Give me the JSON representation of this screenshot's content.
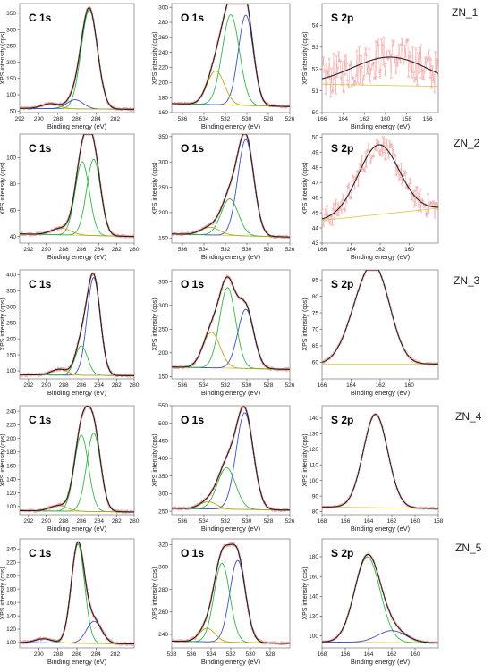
{
  "axis_label_x": "Binding energy (eV)",
  "axis_label_y": "XPS intensity (cps)",
  "colors": {
    "data": "#f2a0a0",
    "envelope": "#222222",
    "component_green": "#36b34a",
    "component_blue": "#3a4fc6",
    "component_olive": "#b5a523",
    "baseline": "#d9c84a"
  },
  "chart_data": [
    {
      "type": "line",
      "sample": "ZN_1",
      "title": "C 1s",
      "xlim": [
        292,
        280
      ],
      "xticks": [
        292,
        290,
        288,
        286,
        284,
        282
      ],
      "ylim": [
        45,
        380
      ],
      "yticks": [
        50,
        100,
        150,
        200,
        250,
        300,
        350
      ],
      "base_start": 58,
      "base_end": 55,
      "peaks": [
        {
          "c": 284.7,
          "w": 0.85,
          "h": 305,
          "color": "green"
        },
        {
          "c": 286.2,
          "w": 0.85,
          "h": 28,
          "color": "blue"
        },
        {
          "c": 288.8,
          "w": 0.9,
          "h": 15,
          "color": "olive"
        }
      ],
      "noise": 0
    },
    {
      "type": "line",
      "sample": "ZN_1",
      "title": "O 1s",
      "xlim": [
        537,
        526
      ],
      "xticks": [
        536,
        534,
        532,
        530,
        528,
        526
      ],
      "ylim": [
        160,
        305
      ],
      "yticks": [
        160,
        180,
        200,
        220,
        240,
        260,
        280,
        300
      ],
      "base_start": 172,
      "base_end": 168,
      "peaks": [
        {
          "c": 530.1,
          "w": 0.7,
          "h": 120,
          "color": "blue"
        },
        {
          "c": 531.5,
          "w": 0.8,
          "h": 120,
          "color": "green"
        },
        {
          "c": 532.9,
          "w": 0.8,
          "h": 45,
          "color": "olive"
        }
      ],
      "noise": 0
    },
    {
      "type": "line",
      "sample": "ZN_1",
      "title": "S 2p",
      "xlim": [
        166,
        155
      ],
      "xticks": [
        166,
        164,
        162,
        160,
        158,
        156
      ],
      "ylim": [
        50,
        55
      ],
      "yticks": [
        50,
        51,
        52,
        53,
        54
      ],
      "base_start": 51.3,
      "base_end": 51.2,
      "peaks": [
        {
          "c": 159.5,
          "w": 3.6,
          "h": 1.3,
          "color": "none"
        }
      ],
      "noise": 1.0
    },
    {
      "type": "line",
      "sample": "ZN_2",
      "title": "C 1s",
      "xlim": [
        293,
        280
      ],
      "xticks": [
        292,
        290,
        288,
        286,
        284,
        282,
        280
      ],
      "ylim": [
        35,
        118
      ],
      "yticks": [
        40,
        60,
        80,
        100
      ],
      "base_start": 42,
      "base_end": 40,
      "peaks": [
        {
          "c": 284.6,
          "w": 0.8,
          "h": 58,
          "color": "green"
        },
        {
          "c": 285.9,
          "w": 0.8,
          "h": 56,
          "color": "green"
        },
        {
          "c": 288.3,
          "w": 1.1,
          "h": 5,
          "color": "olive"
        }
      ],
      "noise": 0
    },
    {
      "type": "line",
      "sample": "ZN_2",
      "title": "O 1s",
      "xlim": [
        537,
        526
      ],
      "xticks": [
        536,
        534,
        532,
        530,
        528,
        526
      ],
      "ylim": [
        140,
        355
      ],
      "yticks": [
        150,
        200,
        250,
        300,
        350
      ],
      "base_start": 158,
      "base_end": 152,
      "peaks": [
        {
          "c": 530.1,
          "w": 0.75,
          "h": 190,
          "color": "blue"
        },
        {
          "c": 531.6,
          "w": 0.8,
          "h": 72,
          "color": "green"
        },
        {
          "c": 533.4,
          "w": 0.9,
          "h": 15,
          "color": "olive"
        }
      ],
      "noise": 0
    },
    {
      "type": "line",
      "sample": "ZN_2",
      "title": "S 2p",
      "xlim": [
        166,
        158
      ],
      "xticks": [
        166,
        164,
        162,
        160
      ],
      "ylim": [
        43,
        50.2
      ],
      "yticks": [
        43,
        44,
        45,
        46,
        47,
        48,
        49,
        50
      ],
      "base_start": 44.5,
      "base_end": 45.3,
      "peaks": [
        {
          "c": 162.1,
          "w": 1.4,
          "h": 4.6,
          "color": "none"
        }
      ],
      "noise": 0.8
    },
    {
      "type": "line",
      "sample": "ZN_3",
      "title": "C 1s",
      "xlim": [
        293,
        280
      ],
      "xticks": [
        292,
        290,
        288,
        286,
        284,
        282,
        280
      ],
      "ylim": [
        75,
        415
      ],
      "yticks": [
        100,
        150,
        200,
        250,
        300,
        350,
        400
      ],
      "base_start": 88,
      "base_end": 85,
      "peaks": [
        {
          "c": 284.6,
          "w": 0.75,
          "h": 305,
          "color": "blue"
        },
        {
          "c": 286.0,
          "w": 0.7,
          "h": 92,
          "color": "green"
        },
        {
          "c": 288.5,
          "w": 0.9,
          "h": 18,
          "color": "olive"
        }
      ],
      "noise": 0
    },
    {
      "type": "line",
      "sample": "ZN_3",
      "title": "O 1s",
      "xlim": [
        537,
        526
      ],
      "xticks": [
        536,
        534,
        532,
        530,
        528,
        526
      ],
      "ylim": [
        145,
        375
      ],
      "yticks": [
        150,
        200,
        250,
        300,
        350
      ],
      "base_start": 170,
      "base_end": 165,
      "peaks": [
        {
          "c": 530.1,
          "w": 0.75,
          "h": 125,
          "color": "blue"
        },
        {
          "c": 531.8,
          "w": 0.75,
          "h": 170,
          "color": "green"
        },
        {
          "c": 533.3,
          "w": 0.8,
          "h": 75,
          "color": "olive"
        }
      ],
      "noise": 0
    },
    {
      "type": "line",
      "sample": "ZN_3",
      "title": "S 2p",
      "xlim": [
        166,
        158
      ],
      "xticks": [
        166,
        164,
        162,
        160
      ],
      "ylim": [
        55,
        88
      ],
      "yticks": [
        60,
        65,
        70,
        75,
        80,
        85
      ],
      "base_start": 59.5,
      "base_end": 59.5,
      "peaks": [
        {
          "c": 162.2,
          "w": 1.0,
          "h": 24,
          "color": "none"
        },
        {
          "c": 163.5,
          "w": 1.0,
          "h": 12,
          "color": "none"
        }
      ],
      "noise": 0.35
    },
    {
      "type": "line",
      "sample": "ZN_4",
      "title": "C 1s",
      "xlim": [
        293,
        280
      ],
      "xticks": [
        292,
        290,
        288,
        286,
        284,
        282,
        280
      ],
      "ylim": [
        88,
        248
      ],
      "yticks": [
        100,
        120,
        140,
        160,
        180,
        200,
        220,
        240
      ],
      "base_start": 94,
      "base_end": 92,
      "peaks": [
        {
          "c": 284.6,
          "w": 0.8,
          "h": 115,
          "color": "green"
        },
        {
          "c": 286.0,
          "w": 0.8,
          "h": 112,
          "color": "green"
        },
        {
          "c": 288.6,
          "w": 1.0,
          "h": 8,
          "color": "olive"
        }
      ],
      "noise": 0
    },
    {
      "type": "line",
      "sample": "ZN_4",
      "title": "O 1s",
      "xlim": [
        537,
        526
      ],
      "xticks": [
        536,
        534,
        532,
        530,
        528,
        526
      ],
      "ylim": [
        240,
        550
      ],
      "yticks": [
        250,
        300,
        350,
        400,
        450,
        500,
        550
      ],
      "base_start": 258,
      "base_end": 253,
      "peaks": [
        {
          "c": 530.2,
          "w": 0.8,
          "h": 275,
          "color": "blue"
        },
        {
          "c": 531.9,
          "w": 0.85,
          "h": 118,
          "color": "green"
        },
        {
          "c": 533.6,
          "w": 0.8,
          "h": 20,
          "color": "olive"
        }
      ],
      "noise": 0
    },
    {
      "type": "line",
      "sample": "ZN_4",
      "title": "S 2p",
      "xlim": [
        168,
        158
      ],
      "xticks": [
        168,
        166,
        164,
        162,
        160,
        158
      ],
      "ylim": [
        78,
        148
      ],
      "yticks": [
        80,
        90,
        100,
        110,
        120,
        130,
        140
      ],
      "base_start": 83,
      "base_end": 82,
      "peaks": [
        {
          "c": 163.4,
          "w": 1.05,
          "h": 60,
          "color": "none"
        }
      ],
      "noise": 0.5
    },
    {
      "type": "line",
      "sample": "ZN_5",
      "title": "C 1s",
      "xlim": [
        292,
        280
      ],
      "xticks": [
        290,
        288,
        286,
        284,
        282
      ],
      "ylim": [
        92,
        255
      ],
      "yticks": [
        100,
        120,
        140,
        160,
        180,
        200,
        220,
        240
      ],
      "base_start": 100,
      "base_end": 98,
      "peaks": [
        {
          "c": 285.9,
          "w": 0.7,
          "h": 148,
          "color": "green"
        },
        {
          "c": 284.2,
          "w": 0.8,
          "h": 33,
          "color": "blue"
        },
        {
          "c": 289.5,
          "w": 0.9,
          "h": 6,
          "color": "olive"
        }
      ],
      "noise": 0
    },
    {
      "type": "line",
      "sample": "ZN_5",
      "title": "O 1s",
      "xlim": [
        538,
        526
      ],
      "xticks": [
        538,
        536,
        534,
        532,
        530,
        528
      ],
      "ylim": [
        228,
        325
      ],
      "yticks": [
        240,
        260,
        280,
        300,
        320
      ],
      "base_start": 234,
      "base_end": 232,
      "peaks": [
        {
          "c": 531.3,
          "w": 0.8,
          "h": 73,
          "color": "blue"
        },
        {
          "c": 532.9,
          "w": 0.8,
          "h": 70,
          "color": "green"
        },
        {
          "c": 534.4,
          "w": 0.8,
          "h": 12,
          "color": "olive"
        }
      ],
      "noise": 0
    },
    {
      "type": "line",
      "sample": "ZN_5",
      "title": "S 2p",
      "xlim": [
        168,
        158
      ],
      "xticks": [
        168,
        166,
        164,
        162,
        160
      ],
      "ylim": [
        88,
        198
      ],
      "yticks": [
        100,
        120,
        140,
        160,
        180
      ],
      "base_start": 94,
      "base_end": 93,
      "peaks": [
        {
          "c": 164.1,
          "w": 1.1,
          "h": 86,
          "color": "green"
        },
        {
          "c": 162.0,
          "w": 1.2,
          "h": 12,
          "color": "blue"
        }
      ],
      "noise": 0.8
    }
  ]
}
